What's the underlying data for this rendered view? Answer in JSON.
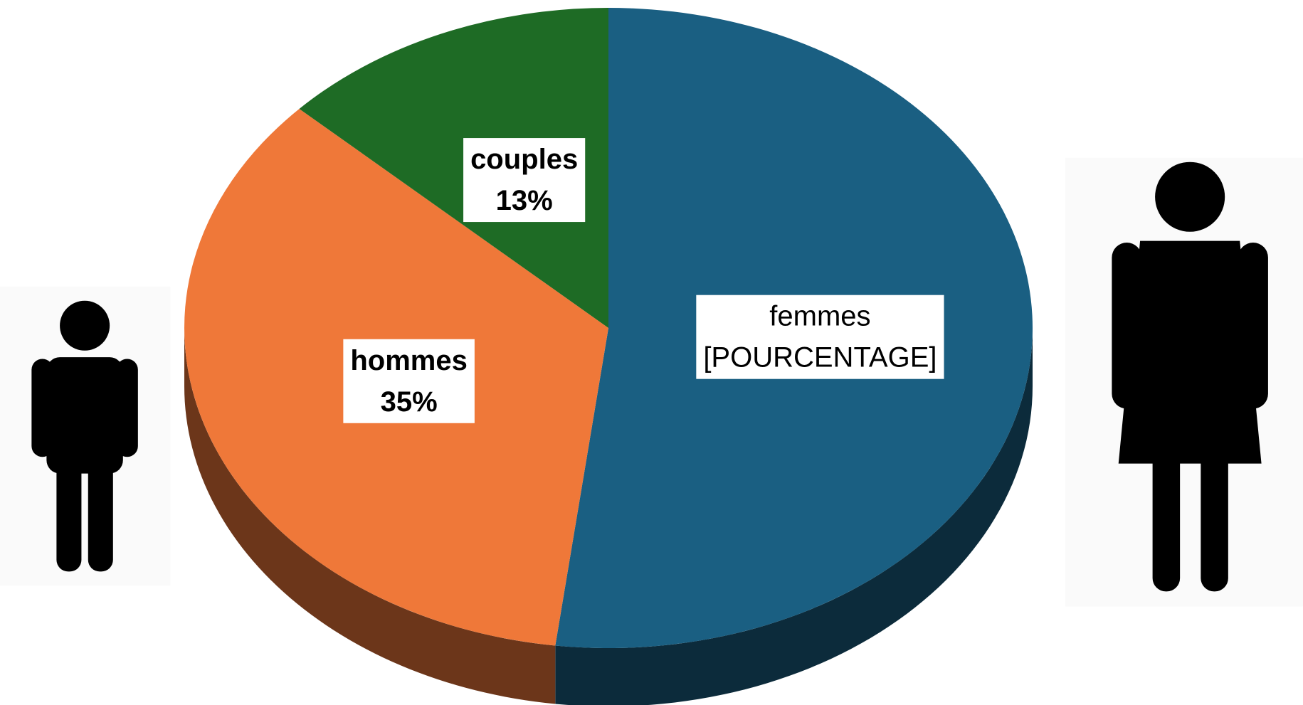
{
  "chart_data": {
    "type": "pie",
    "categories": [
      "femmes",
      "hommes",
      "couples"
    ],
    "values": [
      52,
      35,
      13
    ],
    "value_labels": [
      "[POURCENTAGE]",
      "35%",
      "13%"
    ],
    "colors": [
      "#1a5f82",
      "#ef7839",
      "#1e6b25"
    ]
  }
}
